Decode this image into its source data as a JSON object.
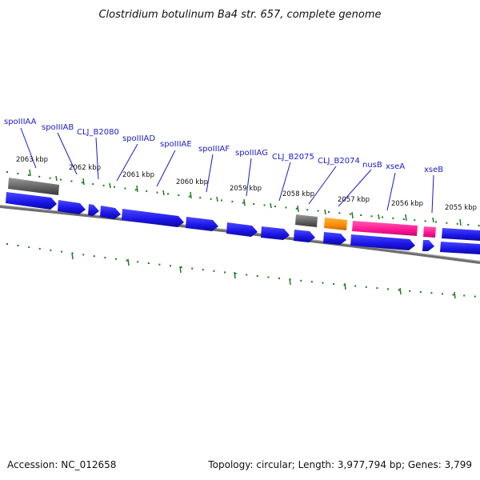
{
  "title": "Clostridium botulinum Ba4 str. 657, complete genome",
  "footer": {
    "accession": "Accession: NC_012658",
    "topology": "Topology: circular; Length: 3,977,794 bp; Genes: 3,799"
  },
  "ticks": [
    {
      "label": "2063 kbp"
    },
    {
      "label": "2062 kbp"
    },
    {
      "label": "2061 kbp"
    },
    {
      "label": "2060 kbp"
    },
    {
      "label": "2059 kbp"
    },
    {
      "label": "2058 kbp"
    },
    {
      "label": "2057 kbp"
    },
    {
      "label": "2056 kbp"
    },
    {
      "label": "2055 kbp"
    }
  ],
  "gene_labels": [
    {
      "text": "spoIIIAA"
    },
    {
      "text": "spoIIIAB"
    },
    {
      "text": "CLJ_B2080"
    },
    {
      "text": "spoIIIAD"
    },
    {
      "text": "spoIIIAE"
    },
    {
      "text": "spoIIIAF"
    },
    {
      "text": "spoIIIAG"
    },
    {
      "text": "CLJ_B2075"
    },
    {
      "text": "CLJ_B2074"
    },
    {
      "text": "nusB"
    },
    {
      "text": "xseA"
    },
    {
      "text": "xseB"
    }
  ],
  "colors": {
    "cds": "#1a14e6",
    "gene_gray": "#666666",
    "orange": "#ff8c00",
    "pink": "#ff1493",
    "tick": "#1e7a1e",
    "backbone": "#7a7a7a",
    "label": "#1a1ac8"
  }
}
